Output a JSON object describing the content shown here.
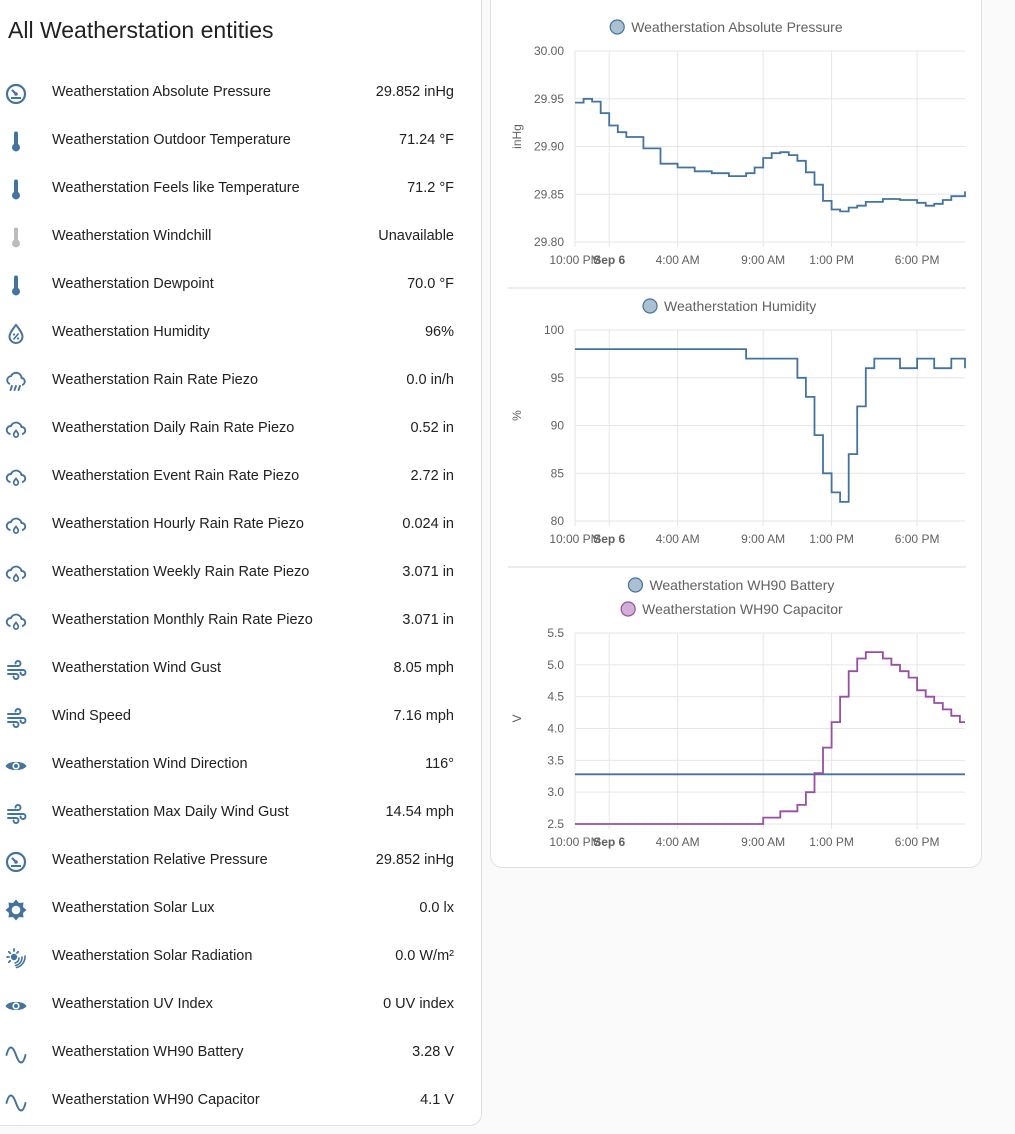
{
  "entities_card": {
    "title": "All Weatherstation entities",
    "rows": [
      {
        "name": "Weatherstation Absolute Pressure",
        "state": "29.852 inHg",
        "icon": "gauge-icon"
      },
      {
        "name": "Weatherstation Outdoor Temperature",
        "state": "71.24 °F",
        "icon": "thermometer-icon"
      },
      {
        "name": "Weatherstation Feels like Temperature",
        "state": "71.2 °F",
        "icon": "thermometer-icon"
      },
      {
        "name": "Weatherstation Windchill",
        "state": "Unavailable",
        "icon": "thermometer-icon-disabled"
      },
      {
        "name": "Weatherstation Dewpoint",
        "state": "70.0 °F",
        "icon": "thermometer-icon"
      },
      {
        "name": "Weatherstation Humidity",
        "state": "96%",
        "icon": "water-percent-icon"
      },
      {
        "name": "Weatherstation Rain Rate Piezo",
        "state": "0.0 in/h",
        "icon": "weather-pouring-icon"
      },
      {
        "name": "Weatherstation Daily Rain Rate Piezo",
        "state": "0.52 in",
        "icon": "water-outline-cloud-icon"
      },
      {
        "name": "Weatherstation Event Rain Rate Piezo",
        "state": "2.72 in",
        "icon": "water-outline-cloud-icon"
      },
      {
        "name": "Weatherstation Hourly Rain Rate Piezo",
        "state": "0.024 in",
        "icon": "water-outline-cloud-icon"
      },
      {
        "name": "Weatherstation Weekly Rain Rate Piezo",
        "state": "3.071 in",
        "icon": "water-outline-cloud-icon"
      },
      {
        "name": "Weatherstation Monthly Rain Rate Piezo",
        "state": "3.071 in",
        "icon": "water-outline-cloud-icon"
      },
      {
        "name": "Weatherstation Wind Gust",
        "state": "8.05 mph",
        "icon": "weather-windy-icon"
      },
      {
        "name": "Wind Speed",
        "state": "7.16 mph",
        "icon": "weather-windy-icon"
      },
      {
        "name": "Weatherstation Wind Direction",
        "state": "116°",
        "icon": "eye-icon"
      },
      {
        "name": "Weatherstation Max Daily Wind Gust",
        "state": "14.54 mph",
        "icon": "weather-windy-icon"
      },
      {
        "name": "Weatherstation Relative Pressure",
        "state": "29.852 inHg",
        "icon": "gauge-icon"
      },
      {
        "name": "Weatherstation Solar Lux",
        "state": "0.0 lx",
        "icon": "brightness-icon"
      },
      {
        "name": "Weatherstation Solar Radiation",
        "state": "0.0 W/m²",
        "icon": "solar-radiation-icon"
      },
      {
        "name": "Weatherstation UV Index",
        "state": "0 UV index",
        "icon": "eye-icon"
      },
      {
        "name": "Weatherstation WH90 Battery",
        "state": "3.28 V",
        "icon": "sine-wave-icon"
      },
      {
        "name": "Weatherstation WH90 Capacitor",
        "state": "4.1 V",
        "icon": "sine-wave-icon"
      }
    ]
  },
  "colors": {
    "icon": "#44739e",
    "icon_disabled": "#bdbdbd",
    "series_blue": "#44739e",
    "series_purple": "#984ea3",
    "grid": "#e6e6e6"
  },
  "x_tick_labels": [
    "10:00 PM",
    "Sep 6",
    "4:00 AM",
    "9:00 AM",
    "1:00 PM",
    "6:00 PM"
  ],
  "chart_data": [
    {
      "type": "line",
      "legend": [
        "Weatherstation Absolute Pressure"
      ],
      "ylabel": "inHg",
      "ylim": [
        29.8,
        30.0
      ],
      "yticks": [
        "30.00",
        "29.95",
        "29.90",
        "29.85",
        "29.80"
      ],
      "x_hours": [
        0,
        0.5,
        1,
        1.5,
        2,
        2.5,
        3,
        4,
        5,
        6,
        7,
        8,
        9,
        10,
        10.5,
        11,
        11.5,
        12,
        12.5,
        13,
        13.5,
        14,
        14.5,
        15,
        15.5,
        16,
        16.5,
        17,
        18,
        19,
        20,
        20.5,
        21,
        21.5,
        22,
        22.8
      ],
      "series": [
        {
          "name": "Weatherstation Absolute Pressure",
          "color": "#44739e",
          "values": [
            29.946,
            29.95,
            29.947,
            29.935,
            29.922,
            29.915,
            29.91,
            29.898,
            29.882,
            29.878,
            29.874,
            29.872,
            29.869,
            29.872,
            29.878,
            29.888,
            29.893,
            29.894,
            29.891,
            29.885,
            29.873,
            29.86,
            29.843,
            29.834,
            29.832,
            29.836,
            29.838,
            29.842,
            29.845,
            29.844,
            29.841,
            29.838,
            29.84,
            29.844,
            29.848,
            29.853
          ]
        }
      ]
    },
    {
      "type": "line",
      "legend": [
        "Weatherstation Humidity"
      ],
      "ylabel": "%",
      "ylim": [
        80,
        100
      ],
      "yticks": [
        "100",
        "95",
        "90",
        "85",
        "80"
      ],
      "x_hours": [
        0,
        1,
        2,
        4,
        6,
        8,
        10,
        11,
        12,
        13,
        13.5,
        14,
        14.5,
        15,
        15.5,
        16,
        16.5,
        17,
        17.5,
        18,
        19,
        20,
        21,
        22,
        22.8
      ],
      "series": [
        {
          "name": "Weatherstation Humidity",
          "color": "#44739e",
          "values": [
            98,
            98,
            98,
            98,
            98,
            98,
            97,
            97,
            97,
            95,
            93,
            89,
            85,
            83,
            82,
            87,
            92,
            96,
            97,
            97,
            96,
            97,
            96,
            97,
            96
          ]
        }
      ]
    },
    {
      "type": "line",
      "legend": [
        "Weatherstation WH90 Battery",
        "Weatherstation WH90 Capacitor"
      ],
      "ylabel": "V",
      "ylim": [
        2.5,
        5.5
      ],
      "yticks": [
        "5.5",
        "5.0",
        "4.5",
        "4.0",
        "3.5",
        "3.0",
        "2.5"
      ],
      "x_hours": [
        0,
        1,
        2,
        4,
        6,
        8,
        9,
        10,
        11,
        11.5,
        12,
        12.5,
        13,
        13.5,
        14,
        14.5,
        15,
        15.5,
        16,
        16.5,
        17,
        17.5,
        18,
        18.5,
        19,
        19.5,
        20,
        20.5,
        21,
        21.5,
        22,
        22.5,
        22.8
      ],
      "series": [
        {
          "name": "Weatherstation WH90 Battery",
          "color": "#44739e",
          "values": [
            3.28,
            3.28,
            3.28,
            3.28,
            3.28,
            3.28,
            3.28,
            3.28,
            3.28,
            3.28,
            3.28,
            3.28,
            3.28,
            3.28,
            3.28,
            3.28,
            3.28,
            3.28,
            3.28,
            3.28,
            3.28,
            3.28,
            3.28,
            3.28,
            3.28,
            3.28,
            3.28,
            3.28,
            3.28,
            3.28,
            3.28,
            3.28,
            3.28
          ]
        },
        {
          "name": "Weatherstation WH90 Capacitor",
          "color": "#984ea3",
          "values": [
            2.5,
            2.5,
            2.5,
            2.5,
            2.5,
            2.5,
            2.5,
            2.5,
            2.6,
            2.6,
            2.7,
            2.7,
            2.8,
            3.0,
            3.3,
            3.7,
            4.1,
            4.5,
            4.9,
            5.1,
            5.2,
            5.2,
            5.1,
            5.0,
            4.9,
            4.8,
            4.6,
            4.5,
            4.4,
            4.3,
            4.2,
            4.1,
            4.1
          ]
        }
      ]
    }
  ]
}
